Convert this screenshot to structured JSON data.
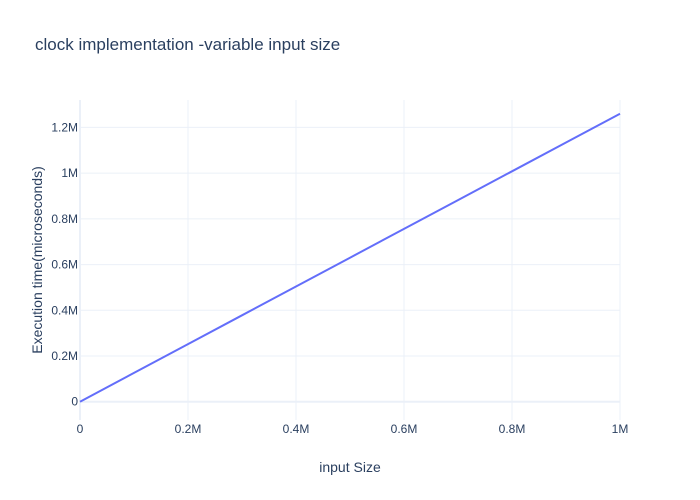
{
  "chart_data": {
    "type": "line",
    "title": "clock implementation -variable input size",
    "xlabel": "input Size",
    "ylabel": "Execution time(microseconds)",
    "xlim": [
      0,
      1000000
    ],
    "ylim": [
      -80000,
      1320000
    ],
    "x_ticks": [
      {
        "value": 0,
        "label": "0"
      },
      {
        "value": 200000,
        "label": "0.2M"
      },
      {
        "value": 400000,
        "label": "0.4M"
      },
      {
        "value": 600000,
        "label": "0.6M"
      },
      {
        "value": 800000,
        "label": "0.8M"
      },
      {
        "value": 1000000,
        "label": "1M"
      }
    ],
    "y_ticks": [
      {
        "value": 0,
        "label": "0"
      },
      {
        "value": 200000,
        "label": "0.2M"
      },
      {
        "value": 400000,
        "label": "0.4M"
      },
      {
        "value": 600000,
        "label": "0.6M"
      },
      {
        "value": 800000,
        "label": "0.8M"
      },
      {
        "value": 1000000,
        "label": "1M"
      },
      {
        "value": 1200000,
        "label": "1.2M"
      }
    ],
    "grid": true,
    "legend": "none",
    "series": [
      {
        "color": "#636efa",
        "x": [
          0,
          100000,
          200000,
          300000,
          400000,
          500000,
          600000,
          700000,
          800000,
          900000,
          1000000
        ],
        "y": [
          0,
          126000,
          252000,
          378000,
          504000,
          630000,
          756000,
          882000,
          1008000,
          1134000,
          1260000
        ]
      }
    ]
  }
}
